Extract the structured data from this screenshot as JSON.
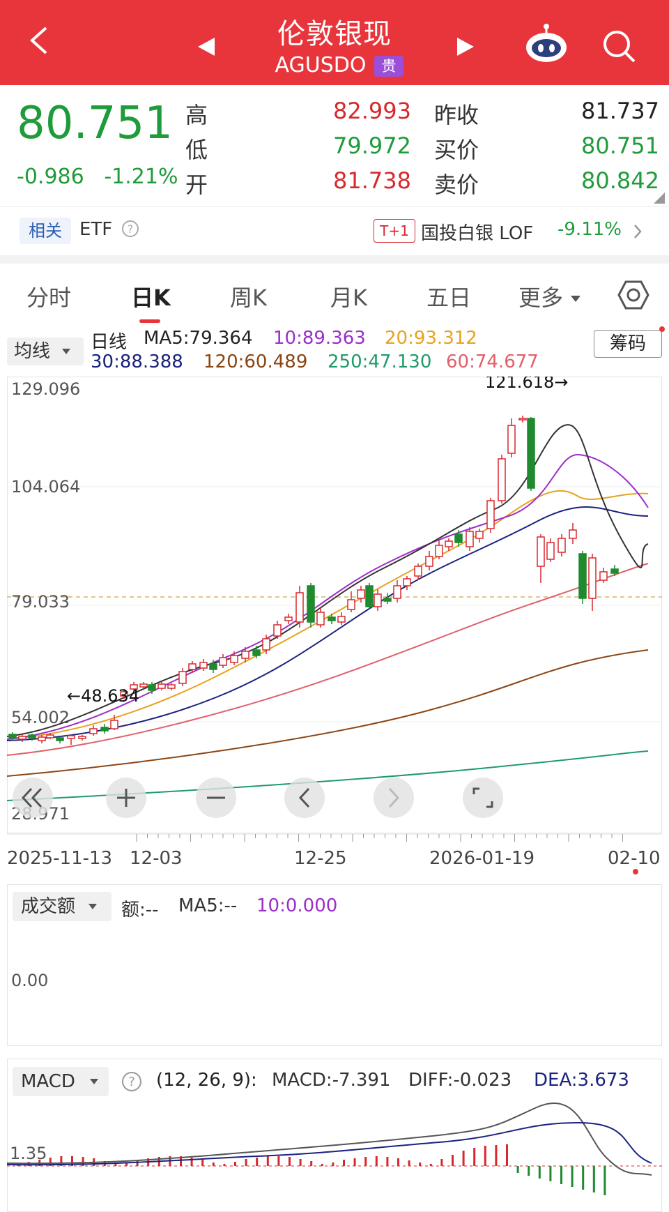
{
  "header": {
    "title": "伦敦银现",
    "code": "AGUSDO",
    "badge": "贵"
  },
  "quote": {
    "price": "80.751",
    "change": "-0.986",
    "change_pct": "-1.21%",
    "high_label": "高",
    "high": "82.993",
    "low_label": "低",
    "low": "79.972",
    "open_label": "开",
    "open": "81.738",
    "prev_close_label": "昨收",
    "prev_close": "81.737",
    "bid_label": "买价",
    "bid": "80.751",
    "ask_label": "卖价",
    "ask": "80.842"
  },
  "related": {
    "tag": "相关",
    "etf_label": "ETF",
    "t1": "T+1",
    "fund_name": "国投白银 LOF",
    "fund_change": "-9.11%"
  },
  "tabs": [
    "分时",
    "日K",
    "周K",
    "月K",
    "五日",
    "更多"
  ],
  "active_tab": "日K",
  "ma": {
    "selector": "均线",
    "period": "日线",
    "ma5": "MA5:79.364",
    "ma10": "10:89.363",
    "ma20": "20:93.312",
    "ma30": "30:88.388",
    "ma120": "120:60.489",
    "ma250": "250:47.130",
    "ma60": "60:74.677",
    "chouma": "筹码",
    "colors": {
      "ma5": "#222222",
      "ma10": "#9b2fc9",
      "ma20": "#e8a21f",
      "ma30": "#1a237e",
      "ma120": "#8b4513",
      "ma250": "#1f9b6a",
      "ma60": "#e0606a"
    }
  },
  "kline": {
    "y_ticks": [
      "129.096",
      "104.064",
      "79.033",
      "54.002",
      "28.971"
    ],
    "max_label": "121.618→",
    "min_label": "←48.634",
    "dates": [
      "2025-11-13",
      "12-03",
      "12-25",
      "2026-01-19",
      "02-10"
    ]
  },
  "volume": {
    "selector": "成交额",
    "amount": "额:--",
    "ma5": "MA5:--",
    "ma10": "10:0.000",
    "zero": "0.00"
  },
  "macd": {
    "selector": "MACD",
    "params": "(12, 26, 9):",
    "macd": "MACD:-7.391",
    "diff": "DIFF:-0.023",
    "dea": "DEA:3.673",
    "axis": "1.35"
  }
}
